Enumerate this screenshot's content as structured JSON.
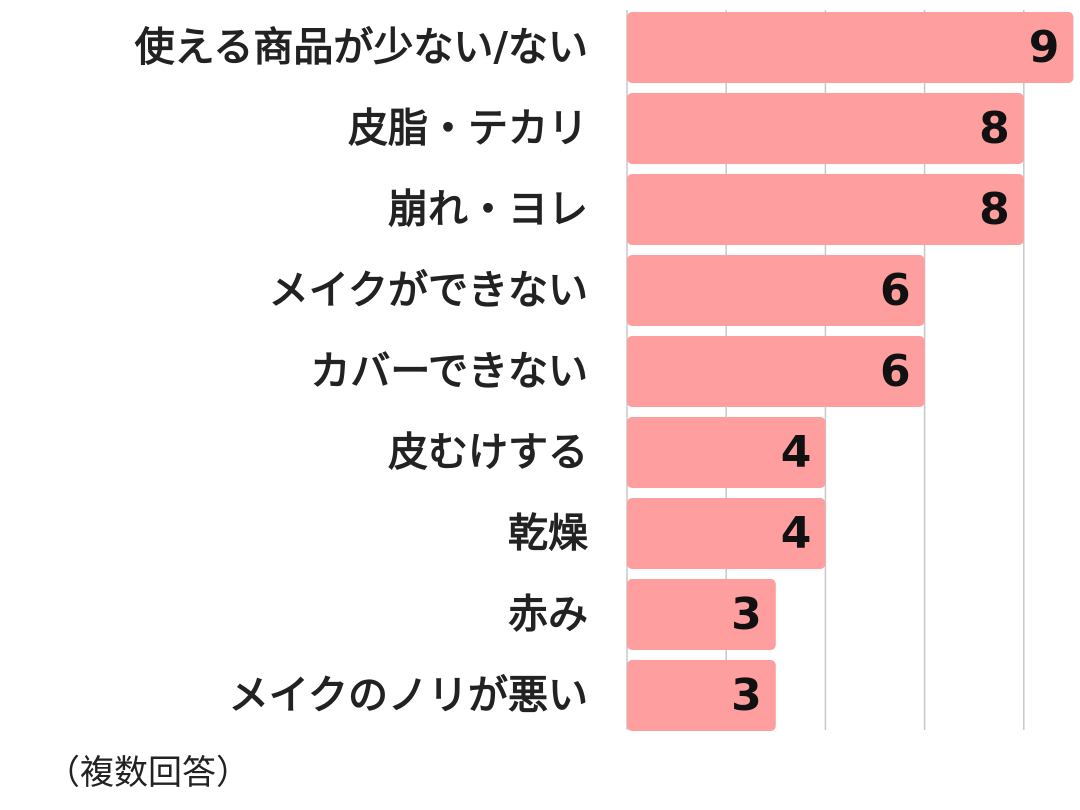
{
  "chart_data": {
    "type": "bar",
    "orientation": "horizontal",
    "categories": [
      "使える商品が少ない/ない",
      "皮脂・テカリ",
      "崩れ・ヨレ",
      "メイクができない",
      "カバーできない",
      "皮むけする",
      "乾燥",
      "赤み",
      "メイクのノリが悪い"
    ],
    "values": [
      9,
      8,
      8,
      6,
      6,
      4,
      4,
      3,
      3
    ],
    "xlim": [
      0,
      9
    ],
    "grid": true,
    "bar_color": "#ff9e9e",
    "grid_color": "#c8c8c8",
    "note": "（複数回答）"
  }
}
